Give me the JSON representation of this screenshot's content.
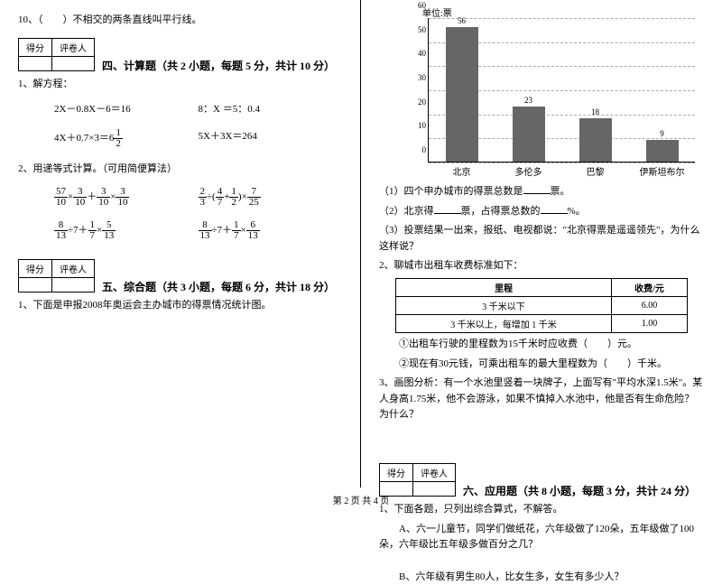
{
  "left": {
    "q10": "10、（　　）不相交的两条直线叫平行线。",
    "scoreHeader": [
      "得分",
      "评卷人"
    ],
    "section4": "四、计算题（共 2 小题，每题 5 分，共计 10 分）",
    "q1": "1、解方程：",
    "eq1a": "2X－0.8X－6＝16",
    "eq1b": "8：X ＝5：0.4",
    "eq1d": "5X＋3X＝264",
    "q2": "2、用递等式计算。（可用简便算法）",
    "section5": "五、综合题（共 3 小题，每题 6 分，共计 18 分）",
    "q5_1": "1、下面是申报2008年奥运会主办城市的得票情况统计图。"
  },
  "right": {
    "chart": {
      "unit": "单位:票",
      "ymax": 60,
      "ystep": 10,
      "categories": [
        "北京",
        "多伦多",
        "巴黎",
        "伊斯坦布尔"
      ],
      "values": [
        56,
        23,
        18,
        9
      ],
      "bar_color": "#666666"
    },
    "r1": "（1）四个申办城市的得票总数是",
    "r1b": "票。",
    "r2a": "（2）北京得",
    "r2b": "票，占得票总数的",
    "r2c": "%。",
    "r3": "（3）投票结果一出来，报纸、电视都说：\"北京得票是遥遥领先\"，为什么这样说？",
    "q2": "2、聊城市出租车收费标准如下：",
    "table": {
      "headers": [
        "里程",
        "收费/元"
      ],
      "rows": [
        [
          "3 千米以下",
          "6.00"
        ],
        [
          "3 千米以上，每增加 1 千米",
          "1.00"
        ]
      ]
    },
    "t1": "①出租车行驶的里程数为15千米时应收费（　　）元。",
    "t2": "②现在有30元钱，可乘出租车的最大里程数为（　　）千米。",
    "q3": "3、画图分析：有一个水池里竖着一块牌子，上面写有\"平均水深1.5米\"。某人身高1.75米，他不会游泳，如果不慎掉入水池中，他是否有生命危险？为什么？",
    "section6": "六、应用题（共 8 小题，每题 3 分，共计 24 分）",
    "a1": "1、下面各题，只列出综合算式，不解答。",
    "a1a": "A、六一儿童节，同学们做纸花，六年级做了120朵，五年级做了100朵，六年级比五年级多做百分之几？",
    "a1b": "B、六年级有男生80人，比女生多，女生有多少人？"
  },
  "footer": "第 2 页 共 4 页"
}
